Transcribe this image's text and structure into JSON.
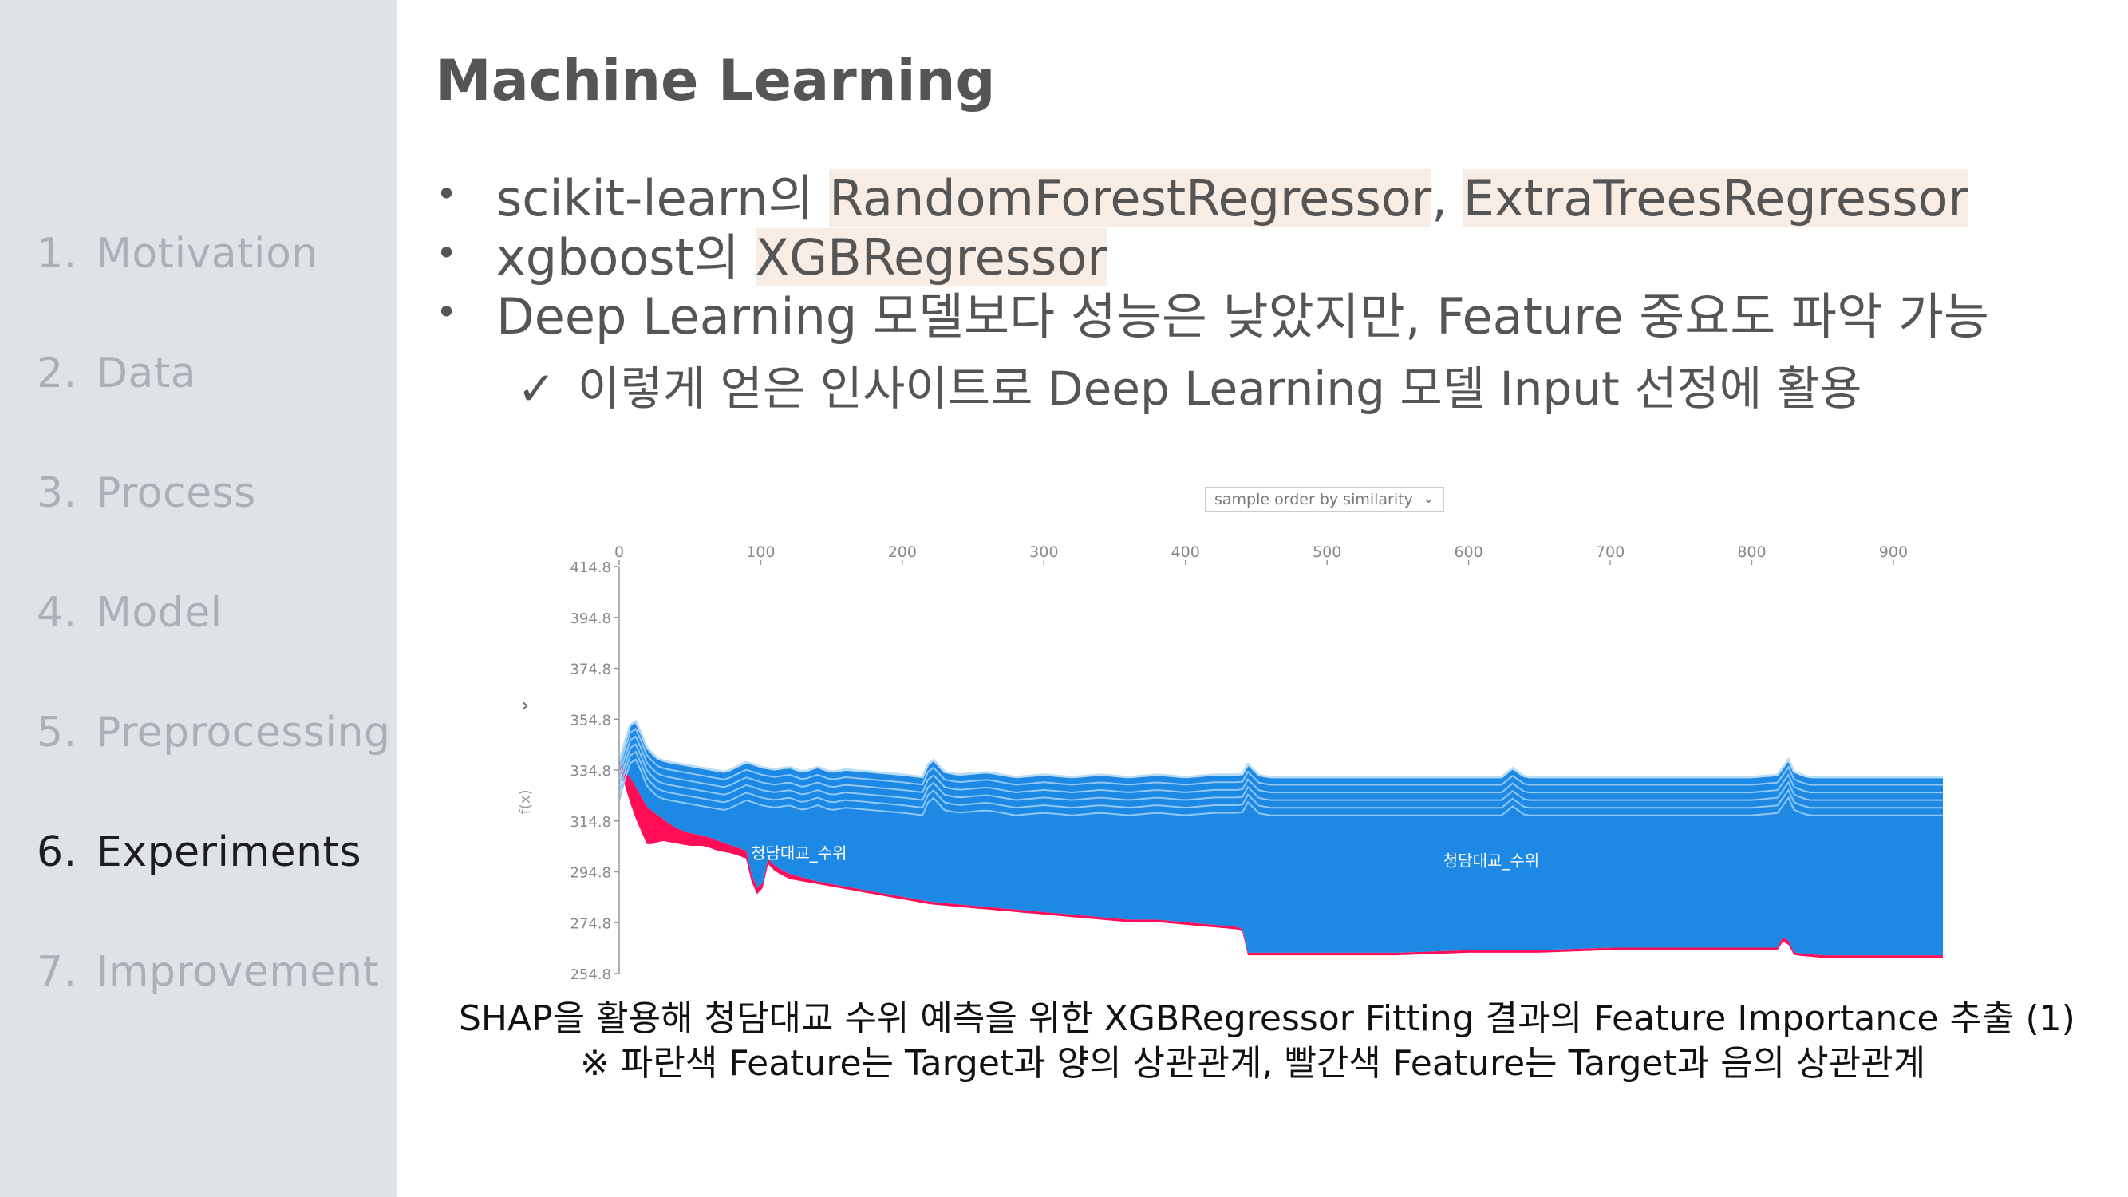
{
  "sidebar": {
    "items": [
      {
        "num": "1.",
        "label": "Motivation",
        "active": false
      },
      {
        "num": "2.",
        "label": "Data",
        "active": false
      },
      {
        "num": "3.",
        "label": "Process",
        "active": false
      },
      {
        "num": "4.",
        "label": "Model",
        "active": false
      },
      {
        "num": "5.",
        "label": "Preprocessing",
        "active": false
      },
      {
        "num": "6.",
        "label": "Experiments",
        "active": true
      },
      {
        "num": "7.",
        "label": "Improvement",
        "active": false
      }
    ]
  },
  "slide": {
    "title": "Machine Learning",
    "bullets": {
      "b1_prefix": "scikit-learn의 ",
      "b1_hl1": "RandomForestRegressor",
      "b1_sep": ", ",
      "b1_hl2": "ExtraTreesRegressor",
      "b2_prefix": "xgboost의 ",
      "b2_hl": "XGBRegressor",
      "b3": "Deep Learning 모델보다 성능은 낮았지만, Feature 중요도 파악 가능",
      "bullet_glyph": "•"
    },
    "sub_bullet": {
      "check": "✓",
      "text": "이렇게 얻은 인사이트로 Deep Learning 모델 Input 선정에 활용"
    },
    "caption_line1": "SHAP을 활용해 청담대교 수위 예측을 위한 XGBRegressor Fitting 결과의 Feature Importance 추출 (1)",
    "caption_line2": "※ 파란색 Feature는 Target과 양의 상관관계, 빨간색 Feature는 Target과 음의 상관관계"
  },
  "chart_data": {
    "type": "area",
    "dropdown_value": "sample order by similarity",
    "x_ticks": [
      0,
      100,
      200,
      300,
      400,
      500,
      600,
      700,
      800,
      900
    ],
    "y_ticks": [
      "414.8",
      "394.8",
      "374.8",
      "354.8",
      "334.8",
      "314.8",
      "294.8",
      "274.8",
      "254.8"
    ],
    "xlim": [
      0,
      935
    ],
    "ylim": [
      254.8,
      414.8
    ],
    "ylabel": "f(x)",
    "expand_glyph": "›",
    "labels": [
      {
        "text": "청담대교_수위",
        "x": 127,
        "y": 300
      },
      {
        "text": "청담대교_수위",
        "x": 616,
        "y": 297
      }
    ],
    "colors": {
      "positive": "#1e88e5",
      "negative": "#ff0d57",
      "band_line": "#8fc8f5"
    },
    "series_top": {
      "x": [
        0,
        5,
        10,
        15,
        20,
        28,
        35,
        45,
        55,
        65,
        75,
        90,
        100,
        110,
        120,
        130,
        140,
        150,
        160,
        180,
        200,
        215,
        220,
        230,
        240,
        260,
        280,
        300,
        320,
        340,
        360,
        380,
        400,
        420,
        440,
        445,
        450,
        460,
        500,
        550,
        600,
        625,
        630,
        640,
        700,
        750,
        800,
        820,
        825,
        830,
        840,
        880,
        935
      ],
      "y": [
        338,
        348,
        356,
        350,
        343,
        339,
        338,
        337,
        336,
        335,
        334,
        338,
        336,
        335,
        336,
        334,
        336,
        334,
        335,
        334,
        333,
        332,
        340,
        334,
        333,
        334,
        332,
        333,
        332,
        333,
        332,
        333,
        332,
        333,
        333,
        338,
        333,
        332,
        332,
        332,
        332,
        332,
        336,
        332,
        332,
        332,
        332,
        333,
        340,
        334,
        332,
        332,
        332
      ]
    },
    "series_base": {
      "x": [
        0,
        10,
        20,
        30,
        40,
        50,
        60,
        70,
        80,
        90,
        95,
        100,
        105,
        110,
        120,
        140,
        160,
        180,
        200,
        220,
        240,
        260,
        280,
        300,
        320,
        340,
        360,
        380,
        400,
        420,
        440,
        443,
        450,
        500,
        550,
        600,
        650,
        700,
        750,
        800,
        820,
        823,
        830,
        850,
        900,
        935
      ],
      "y": [
        338,
        330,
        320,
        316,
        312,
        310,
        309,
        307,
        305,
        303,
        290,
        287,
        300,
        297,
        294,
        291,
        289,
        287,
        285,
        283,
        282,
        281,
        280,
        279,
        278,
        277,
        276,
        276,
        275,
        274,
        273,
        263,
        263,
        263,
        263,
        264,
        264,
        265,
        265,
        265,
        265,
        271,
        263,
        262,
        262,
        262
      ]
    },
    "series_red_bottom": {
      "x": [
        0,
        10,
        20,
        30,
        40,
        50,
        60,
        70,
        80,
        90,
        95,
        100,
        105,
        110,
        120,
        140,
        160,
        180,
        200,
        220,
        240,
        260,
        280,
        300,
        320,
        340,
        360,
        380,
        400,
        420,
        440,
        443,
        450,
        500,
        550,
        600,
        650,
        700,
        750,
        800,
        820,
        823,
        830,
        850,
        900,
        935
      ],
      "y": [
        336,
        318,
        305,
        307,
        306,
        305,
        305,
        303,
        302,
        300,
        287,
        285,
        298,
        295,
        292,
        290,
        288,
        286,
        284,
        282,
        281,
        280,
        279,
        278,
        277,
        276,
        275,
        275,
        274,
        273,
        272,
        262,
        262,
        262,
        262,
        263,
        263,
        264,
        264,
        264,
        264,
        269,
        262,
        261,
        261,
        261
      ]
    },
    "band_offsets": [
      3,
      6,
      9,
      12,
      15
    ]
  }
}
